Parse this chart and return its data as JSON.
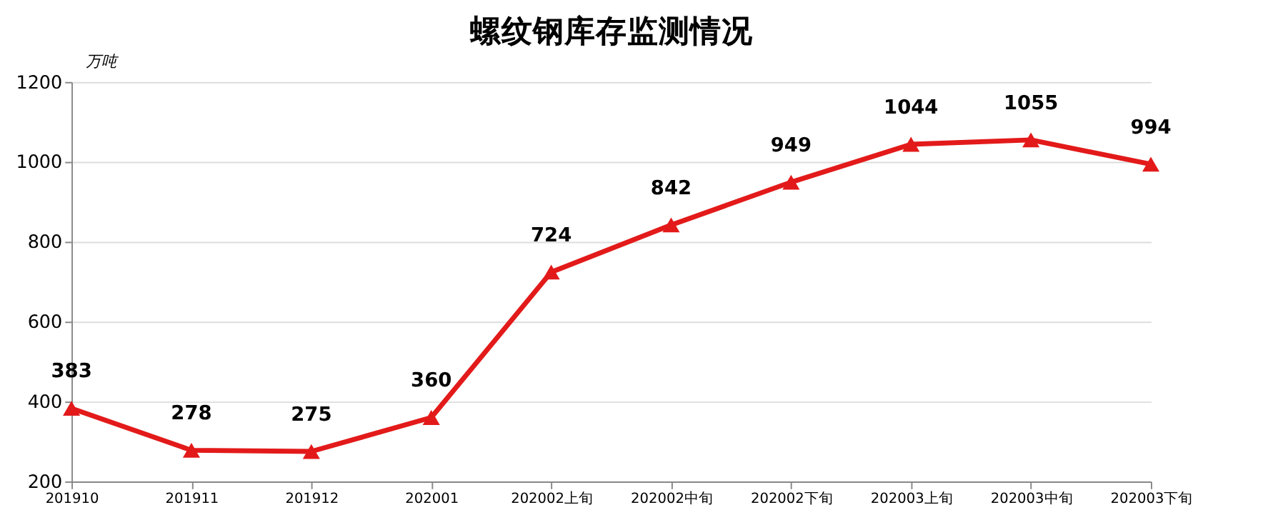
{
  "chart_data": {
    "type": "line",
    "title": "螺纹钢库存监测情况",
    "ylabel": "万吨",
    "categories": [
      "201910",
      "201911",
      "201912",
      "202001",
      "202002上旬",
      "202002中旬",
      "202002下旬",
      "202003上旬",
      "202003中旬",
      "202003下旬"
    ],
    "series": [
      {
        "color": "#e31a1a",
        "values": [
          383,
          278,
          275,
          360,
          724,
          842,
          949,
          1044,
          1055,
          994
        ]
      }
    ],
    "ylim": [
      200,
      1200
    ],
    "yticks": [
      200,
      400,
      600,
      800,
      1000,
      1200
    ],
    "grid": "y",
    "marker": "triangle",
    "line_style": "solid",
    "data_labels": true
  }
}
